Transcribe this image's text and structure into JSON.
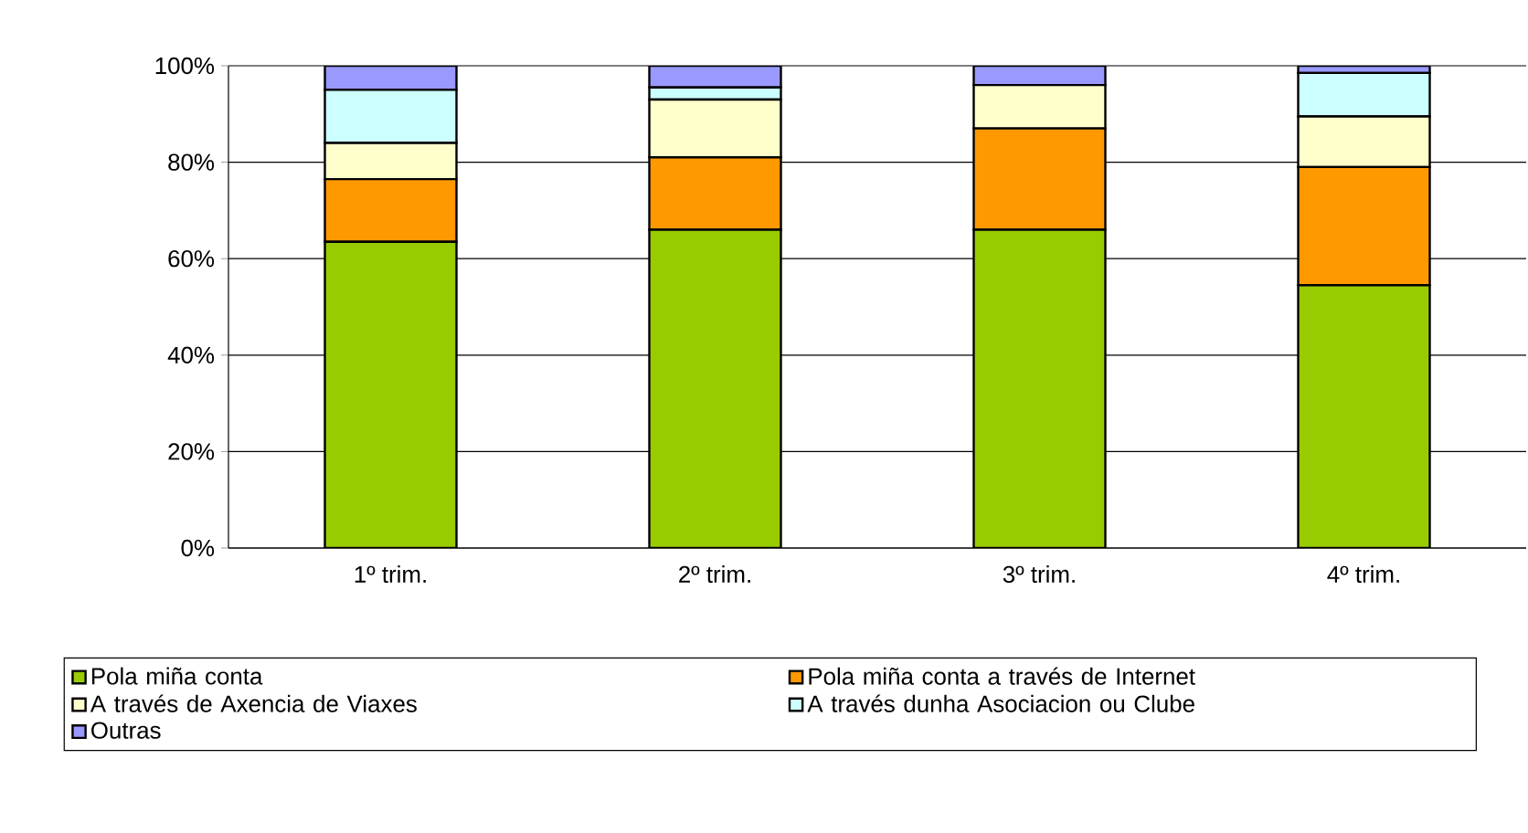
{
  "chart_data": {
    "type": "bar",
    "stacked": true,
    "categories": [
      "1º trim.",
      "2º trim.",
      "3º trim.",
      "4º trim."
    ],
    "series": [
      {
        "name": "Pola miña conta",
        "color": "#99cc00",
        "values": [
          63.5,
          66,
          66,
          54.5
        ]
      },
      {
        "name": "Pola miña conta a través de Internet",
        "color": "#ff9900",
        "values": [
          13,
          15,
          21,
          24.5
        ]
      },
      {
        "name": "A través de Axencia de Viaxes",
        "color": "#ffffcc",
        "values": [
          7.5,
          12,
          9,
          10.5
        ]
      },
      {
        "name": "A través dunha Asociacion ou Clube",
        "color": "#ccffff",
        "values": [
          11,
          2.5,
          0,
          9
        ]
      },
      {
        "name": "Outras",
        "color": "#9999ff",
        "values": [
          5,
          4.5,
          4,
          1.5
        ]
      }
    ],
    "ylim": [
      0,
      100
    ],
    "yticks": [
      {
        "value": 0,
        "label": "0%"
      },
      {
        "value": 20,
        "label": "20%"
      },
      {
        "value": 40,
        "label": "40%"
      },
      {
        "value": 60,
        "label": "60%"
      },
      {
        "value": 80,
        "label": "80%"
      },
      {
        "value": 100,
        "label": "100%"
      }
    ],
    "grid": "y",
    "legend": "bottom"
  }
}
